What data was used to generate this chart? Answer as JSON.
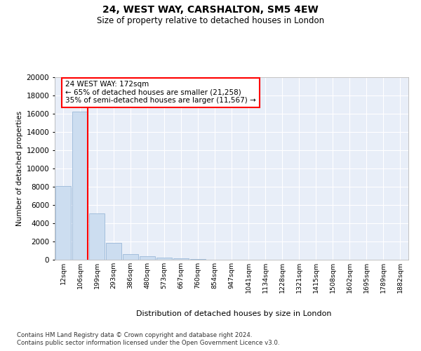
{
  "title": "24, WEST WAY, CARSHALTON, SM5 4EW",
  "subtitle": "Size of property relative to detached houses in London",
  "xlabel": "Distribution of detached houses by size in London",
  "ylabel": "Number of detached properties",
  "bar_labels": [
    "12sqm",
    "106sqm",
    "199sqm",
    "293sqm",
    "386sqm",
    "480sqm",
    "573sqm",
    "667sqm",
    "760sqm",
    "854sqm",
    "947sqm",
    "1041sqm",
    "1134sqm",
    "1228sqm",
    "1321sqm",
    "1415sqm",
    "1508sqm",
    "1602sqm",
    "1695sqm",
    "1789sqm",
    "1882sqm"
  ],
  "bar_heights": [
    8050,
    16200,
    5100,
    1850,
    650,
    420,
    210,
    170,
    90,
    10,
    0,
    0,
    0,
    0,
    0,
    0,
    0,
    0,
    0,
    0,
    0
  ],
  "bar_color": "#ccddf0",
  "bar_edge_color": "#9ab8d8",
  "red_line_bin_index": 1,
  "ylim": [
    0,
    20000
  ],
  "yticks": [
    0,
    2000,
    4000,
    6000,
    8000,
    10000,
    12000,
    14000,
    16000,
    18000,
    20000
  ],
  "plot_bg_color": "#e8eef8",
  "grid_color": "#ffffff",
  "annotation_text": "24 WEST WAY: 172sqm\n← 65% of detached houses are smaller (21,258)\n35% of semi-detached houses are larger (11,567) →",
  "footer_line1": "Contains HM Land Registry data © Crown copyright and database right 2024.",
  "footer_line2": "Contains public sector information licensed under the Open Government Licence v3.0."
}
